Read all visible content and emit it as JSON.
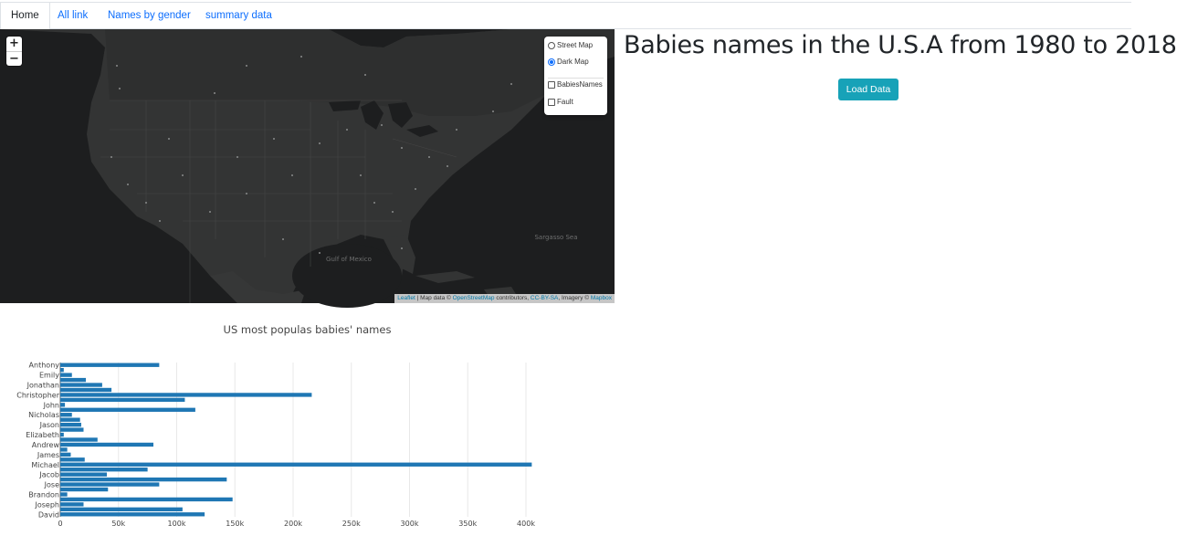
{
  "nav": {
    "tabs": [
      {
        "label": "Home",
        "active": true
      },
      {
        "label": "All link",
        "active": false
      },
      {
        "label": "Names by gender",
        "active": false
      },
      {
        "label": "summary data",
        "active": false
      }
    ]
  },
  "map": {
    "zoom_in": "+",
    "zoom_out": "−",
    "layers": {
      "base": [
        {
          "label": "Street Map",
          "selected": false
        },
        {
          "label": "Dark Map",
          "selected": true
        }
      ],
      "overlays": [
        {
          "label": "BabiesNames",
          "checked": false
        },
        {
          "label": "Fault",
          "checked": false
        }
      ]
    },
    "place_labels": [
      "Gulf of Mexico",
      "Sargasso Sea"
    ],
    "attribution": {
      "leaflet": "Leaflet",
      "text1": " | Map data © ",
      "osm": "OpenStreetMap",
      "text2": " contributors, ",
      "license": "CC-BY-SA",
      "text3": ", Imagery © ",
      "mapbox": "Mapbox"
    }
  },
  "header": {
    "title": "Babies names in the U.S.A from 1980 to 2018",
    "load_button": "Load Data"
  },
  "chart_data": {
    "type": "bar",
    "orientation": "horizontal",
    "title": "US most populas babies' names",
    "color": "#1f77b4",
    "xlim": [
      0,
      420000
    ],
    "xticks": [
      0,
      50000,
      100000,
      150000,
      200000,
      250000,
      300000,
      350000,
      400000
    ],
    "xtick_labels": [
      "0",
      "50k",
      "100k",
      "150k",
      "200k",
      "250k",
      "300k",
      "350k",
      "400k"
    ],
    "categories": [
      "Anthony",
      "Emily",
      "Jonathan",
      "Christopher",
      "John",
      "Nicholas",
      "Jason",
      "Elizabeth",
      "Andrew",
      "James",
      "Michael",
      "Jacob",
      "Jose",
      "Brandon",
      "Joseph",
      "David"
    ],
    "rows": [
      {
        "label": "Anthony",
        "value": 85000
      },
      {
        "label": "",
        "value": 3000
      },
      {
        "label": "Emily",
        "value": 10000
      },
      {
        "label": "",
        "value": 22000
      },
      {
        "label": "Jonathan",
        "value": 36000
      },
      {
        "label": "",
        "value": 44000
      },
      {
        "label": "Christopher",
        "value": 216000
      },
      {
        "label": "",
        "value": 107000
      },
      {
        "label": "John",
        "value": 4000
      },
      {
        "label": "",
        "value": 116000
      },
      {
        "label": "Nicholas",
        "value": 10000
      },
      {
        "label": "",
        "value": 17000
      },
      {
        "label": "Jason",
        "value": 18000
      },
      {
        "label": "",
        "value": 20000
      },
      {
        "label": "Elizabeth",
        "value": 3000
      },
      {
        "label": "",
        "value": 32000
      },
      {
        "label": "Andrew",
        "value": 80000
      },
      {
        "label": "",
        "value": 6000
      },
      {
        "label": "James",
        "value": 9000
      },
      {
        "label": "",
        "value": 21000
      },
      {
        "label": "Michael",
        "value": 405000
      },
      {
        "label": "",
        "value": 75000
      },
      {
        "label": "Jacob",
        "value": 40000
      },
      {
        "label": "",
        "value": 143000
      },
      {
        "label": "Jose",
        "value": 85000
      },
      {
        "label": "",
        "value": 41000
      },
      {
        "label": "Brandon",
        "value": 6000
      },
      {
        "label": "",
        "value": 148000
      },
      {
        "label": "Joseph",
        "value": 20000
      },
      {
        "label": "",
        "value": 105000
      },
      {
        "label": "David",
        "value": 124000
      }
    ]
  }
}
